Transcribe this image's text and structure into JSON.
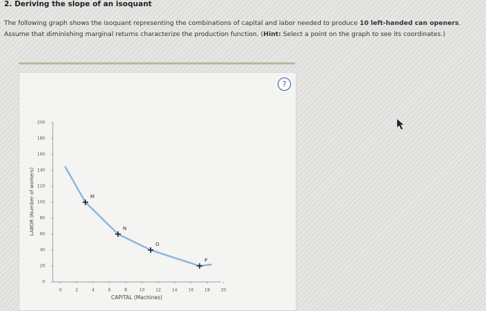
{
  "header": {
    "title": "2. Deriving the slope of an isoquant"
  },
  "paragraph": [
    {
      "text": "The following graph shows the isoquant representing the combinations of capital and labor needed to produce ",
      "bold": false
    },
    {
      "text": "10 left-handed can openers",
      "bold": true
    },
    {
      "text": ". Assume that diminishing marginal returns characterize the production function. (",
      "bold": false
    },
    {
      "text": "Hint:",
      "bold": true
    },
    {
      "text": " Select a point on the graph to see its coordinates.)",
      "bold": false
    }
  ],
  "help": "?",
  "chart_data": {
    "type": "line",
    "xlabel": "CAPITAL (Machines)",
    "ylabel": "LABOR (Number of workers)",
    "xlim": [
      0,
      20
    ],
    "ylim": [
      0,
      200
    ],
    "xticks": [
      0,
      2,
      4,
      6,
      8,
      10,
      12,
      14,
      16,
      18,
      20
    ],
    "yticks": [
      0,
      20,
      40,
      60,
      80,
      100,
      120,
      140,
      160,
      180,
      200
    ],
    "series": [
      {
        "color": "#8fb4dc",
        "x": [
          1.5,
          4,
          8,
          12,
          18,
          19.5
        ],
        "values": [
          145,
          100,
          60,
          40,
          20,
          22
        ]
      }
    ],
    "points": [
      {
        "label": "M",
        "x": 4,
        "y": 100
      },
      {
        "label": "N",
        "x": 8,
        "y": 60
      },
      {
        "label": "O",
        "x": 12,
        "y": 40
      },
      {
        "label": "P",
        "x": 18,
        "y": 20
      }
    ],
    "point_color": "#333333"
  }
}
